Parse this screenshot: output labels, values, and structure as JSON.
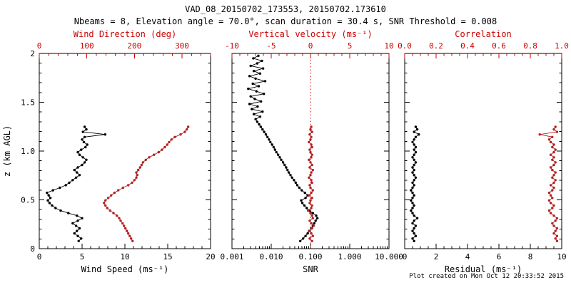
{
  "chart_data": {
    "type": "line",
    "title": "VAD_08_20150702_173553, 20150702.173610",
    "subtitle": "Nbeams = 8, Elevation angle = 70.0°, scan duration = 30.4 s, SNR Threshold = 0.008",
    "footer": "Plot created on Mon Oct 12 20:33:52 2015",
    "colors": {
      "black": "#000000",
      "axis_red": "#cc0000",
      "data_red": "#b22222"
    },
    "y_axis": {
      "label": "z (km AGL)",
      "range": [
        0,
        2
      ],
      "ticks": [
        0,
        0.5,
        1.0,
        1.5,
        2.0
      ],
      "tick_labels": [
        "0",
        "0.5",
        "1.0",
        "1.5",
        "2"
      ],
      "minor_step": 0.1
    },
    "z_levels": [
      0.078,
      0.104,
      0.13,
      0.156,
      0.182,
      0.208,
      0.234,
      0.26,
      0.286,
      0.312,
      0.338,
      0.364,
      0.39,
      0.416,
      0.442,
      0.468,
      0.494,
      0.52,
      0.546,
      0.572,
      0.598,
      0.624,
      0.65,
      0.676,
      0.702,
      0.728,
      0.754,
      0.78,
      0.806,
      0.832,
      0.858,
      0.884,
      0.91,
      0.936,
      0.962,
      0.988,
      1.014,
      1.04,
      1.066,
      1.092,
      1.118,
      1.144,
      1.17,
      1.196,
      1.222,
      1.248
    ],
    "z_levels_snr": [
      0.078,
      0.104,
      0.13,
      0.156,
      0.182,
      0.208,
      0.234,
      0.26,
      0.286,
      0.312,
      0.338,
      0.364,
      0.39,
      0.416,
      0.442,
      0.468,
      0.494,
      0.52,
      0.546,
      0.572,
      0.598,
      0.624,
      0.65,
      0.676,
      0.702,
      0.728,
      0.754,
      0.78,
      0.806,
      0.832,
      0.858,
      0.884,
      0.91,
      0.936,
      0.962,
      0.988,
      1.014,
      1.04,
      1.066,
      1.092,
      1.118,
      1.144,
      1.17,
      1.196,
      1.222,
      1.248,
      1.274,
      1.3,
      1.326,
      1.352,
      1.378,
      1.404,
      1.43,
      1.456,
      1.482,
      1.508,
      1.534,
      1.56,
      1.586,
      1.612,
      1.638,
      1.664,
      1.69,
      1.716,
      1.742,
      1.768,
      1.794,
      1.82,
      1.846,
      1.872,
      1.898,
      1.924,
      1.95,
      1.976
    ],
    "panels": [
      {
        "name": "wind",
        "bottom_axis": {
          "label": "Wind Speed (ms⁻¹)",
          "scale": "linear",
          "range": [
            0,
            20
          ],
          "ticks": [
            0,
            5,
            10,
            15,
            20
          ],
          "tick_labels": [
            "0",
            "5",
            "10",
            "15",
            "20"
          ],
          "minor_step": 1
        },
        "top_axis": {
          "label": "Wind Direction (deg)",
          "scale": "linear",
          "range": [
            0,
            360
          ],
          "ticks": [
            0,
            100,
            200,
            300
          ],
          "tick_labels": [
            "0",
            "100",
            "200",
            "300"
          ],
          "minor_step": 20
        },
        "series": [
          {
            "name": "wind-speed",
            "axis": "bottom",
            "color": "black",
            "z": "z_levels",
            "values": [
              4.6,
              4.9,
              4.5,
              4.1,
              4.4,
              4.7,
              4.3,
              3.9,
              4.5,
              5.0,
              4.4,
              3.4,
              2.5,
              1.9,
              1.5,
              1.2,
              1.0,
              1.3,
              1.1,
              0.9,
              1.6,
              2.4,
              3.1,
              3.5,
              3.9,
              4.3,
              4.7,
              4.4,
              4.1,
              4.5,
              5.0,
              5.3,
              5.5,
              5.1,
              4.7,
              4.5,
              4.9,
              5.4,
              5.6,
              5.2,
              5.0,
              5.3,
              7.7,
              5.1,
              5.5,
              5.3
            ]
          },
          {
            "name": "wind-direction",
            "axis": "top",
            "color": "data_red",
            "z": "z_levels",
            "values": [
              196,
              193,
              190,
              187,
              184,
              181,
              178,
              175,
              171,
              168,
              163,
              156,
              149,
              143,
              139,
              136,
              139,
              145,
              151,
              158,
              166,
              176,
              187,
              195,
              200,
              204,
              206,
              204,
              208,
              212,
              215,
              218,
              224,
              231,
              241,
              251,
              258,
              264,
              269,
              273,
              278,
              285,
              297,
              306,
              310,
              313
            ]
          }
        ]
      },
      {
        "name": "snr",
        "zero_line": {
          "axis": "top",
          "value": 0
        },
        "bottom_axis": {
          "label": "SNR",
          "scale": "log",
          "range": [
            0.001,
            10.0
          ],
          "ticks": [
            0.001,
            0.01,
            0.1,
            1.0,
            10.0
          ],
          "tick_labels": [
            "0.001",
            "0.010",
            "0.100",
            "1.000",
            "10.000"
          ]
        },
        "top_axis": {
          "label": "Vertical velocity (ms⁻¹)",
          "scale": "linear",
          "range": [
            -10,
            10
          ],
          "ticks": [
            -10,
            -5,
            0,
            5,
            10
          ],
          "tick_labels": [
            "-10",
            "-5",
            "0",
            "5",
            "10"
          ],
          "minor_step": 1
        },
        "series": [
          {
            "name": "snr",
            "axis": "bottom",
            "color": "black",
            "z": "z_levels_snr",
            "values": [
              0.055,
              0.065,
              0.075,
              0.085,
              0.095,
              0.105,
              0.115,
              0.125,
              0.135,
              0.15,
              0.14,
              0.115,
              0.095,
              0.08,
              0.07,
              0.062,
              0.058,
              0.075,
              0.085,
              0.072,
              0.06,
              0.052,
              0.046,
              0.042,
              0.038,
              0.034,
              0.031,
              0.028,
              0.026,
              0.024,
              0.022,
              0.02,
              0.018,
              0.0165,
              0.015,
              0.0135,
              0.0125,
              0.0115,
              0.0105,
              0.0095,
              0.0088,
              0.008,
              0.0073,
              0.0066,
              0.006,
              0.0054,
              0.0049,
              0.0044,
              0.004,
              0.0052,
              0.0036,
              0.006,
              0.0032,
              0.0045,
              0.0028,
              0.0055,
              0.0038,
              0.003,
              0.0065,
              0.0042,
              0.0026,
              0.0048,
              0.0034,
              0.007,
              0.004,
              0.0028,
              0.0052,
              0.0036,
              0.0062,
              0.003,
              0.0044,
              0.0058,
              0.0035,
              0.0047
            ]
          },
          {
            "name": "vertical-velocity",
            "axis": "top",
            "color": "data_red",
            "z": "z_levels",
            "values": [
              0.2,
              -0.1,
              0.3,
              0.1,
              -0.2,
              0.2,
              0.4,
              0.1,
              -0.1,
              0.3,
              0.2,
              0.0,
              -0.3,
              0.1,
              0.2,
              -0.1,
              0.0,
              0.2,
              -0.2,
              0.1,
              0.3,
              0.0,
              -0.1,
              0.2,
              0.1,
              -0.2,
              0.0,
              0.1,
              0.3,
              -0.1,
              0.2,
              0.0,
              -0.2,
              0.1,
              0.2,
              0.0,
              -0.1,
              0.2,
              0.1,
              -0.2,
              0.0,
              0.1,
              -0.1,
              0.2,
              0.0,
              0.1
            ]
          }
        ]
      },
      {
        "name": "residual",
        "bottom_axis": {
          "label": "Residual (ms⁻¹)",
          "scale": "linear",
          "range": [
            0,
            10
          ],
          "ticks": [
            0,
            2,
            4,
            6,
            8,
            10
          ],
          "tick_labels": [
            "0",
            "2",
            "4",
            "6",
            "8",
            "10"
          ],
          "minor_step": 0.5
        },
        "top_axis": {
          "label": "Correlation",
          "scale": "linear",
          "range": [
            0,
            1
          ],
          "ticks": [
            0,
            0.2,
            0.4,
            0.6,
            0.8,
            1.0
          ],
          "tick_labels": [
            "0.0",
            "0.2",
            "0.4",
            "0.6",
            "0.8",
            "1.0"
          ],
          "minor_step": 0.05
        },
        "series": [
          {
            "name": "residual",
            "axis": "bottom",
            "color": "black",
            "z": "z_levels",
            "values": [
              0.6,
              0.5,
              0.7,
              0.6,
              0.5,
              0.6,
              0.7,
              0.5,
              0.6,
              0.8,
              0.6,
              0.5,
              0.4,
              0.5,
              0.6,
              0.5,
              0.4,
              0.5,
              0.6,
              0.5,
              0.4,
              0.5,
              0.6,
              0.5,
              0.6,
              0.7,
              0.6,
              0.5,
              0.6,
              0.5,
              0.6,
              0.7,
              0.6,
              0.5,
              0.6,
              0.7,
              0.6,
              0.7,
              0.6,
              0.5,
              0.6,
              0.7,
              0.9,
              0.6,
              0.8,
              0.7
            ]
          },
          {
            "name": "correlation",
            "axis": "top",
            "color": "data_red",
            "z": "z_levels",
            "values": [
              0.97,
              0.96,
              0.97,
              0.95,
              0.96,
              0.97,
              0.95,
              0.94,
              0.96,
              0.97,
              0.95,
              0.93,
              0.92,
              0.94,
              0.95,
              0.93,
              0.92,
              0.94,
              0.93,
              0.92,
              0.94,
              0.95,
              0.93,
              0.95,
              0.96,
              0.94,
              0.95,
              0.96,
              0.94,
              0.93,
              0.95,
              0.96,
              0.94,
              0.95,
              0.93,
              0.95,
              0.96,
              0.94,
              0.95,
              0.93,
              0.92,
              0.94,
              0.86,
              0.97,
              0.95,
              0.96
            ]
          }
        ]
      }
    ]
  }
}
